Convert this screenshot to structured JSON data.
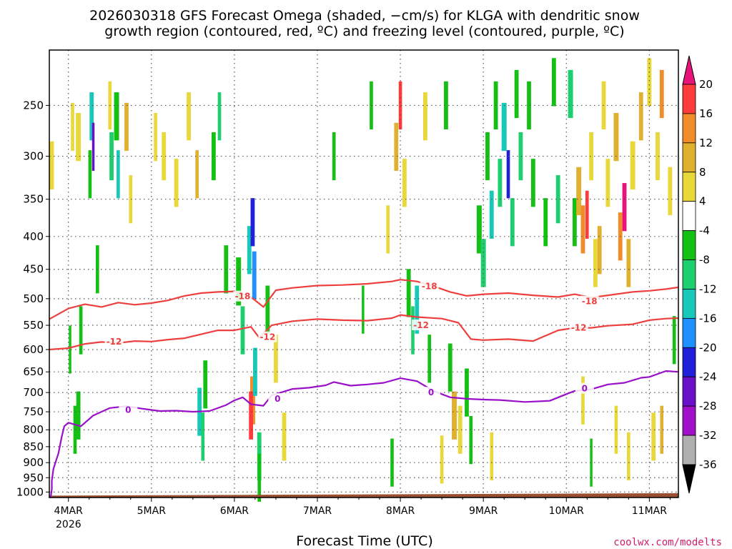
{
  "chart_data": {
    "type": "heatmap",
    "title_line1": "2026030318 GFS Forecast Omega (shaded, −cm/s) for KLGA with dendritic snow",
    "title_line2": "growth region (contoured, red, ºC) and freezing level (contoured, purple, ºC)",
    "xlabel": "Forecast Time (UTC)",
    "ylabel": "",
    "credit": "coolwx.com/modelts",
    "x_range": [
      -0.23,
      7.35
    ],
    "x_ticks": [
      {
        "x": 0,
        "label": "4MAR"
      },
      {
        "x": 1,
        "label": "5MAR"
      },
      {
        "x": 2,
        "label": "6MAR"
      },
      {
        "x": 3,
        "label": "7MAR"
      },
      {
        "x": 4,
        "label": "8MAR"
      },
      {
        "x": 5,
        "label": "9MAR"
      },
      {
        "x": 6,
        "label": "10MAR"
      },
      {
        "x": 7,
        "label": "11MAR"
      }
    ],
    "x_year_label": "2026",
    "y_axis_scale": "log pressure (hPa)",
    "y_range": [
      1020,
      205
    ],
    "y_ticks": [
      "250",
      "300",
      "350",
      "400",
      "450",
      "500",
      "550",
      "600",
      "650",
      "700",
      "750",
      "800",
      "850",
      "900",
      "950",
      "1000"
    ],
    "colorbar": {
      "boundaries": [
        -36,
        -32,
        -28,
        -24,
        -20,
        -16,
        -12,
        -8,
        -4,
        4,
        8,
        12,
        16,
        20
      ],
      "tick_labels": [
        "20",
        "16",
        "12",
        "8",
        "4",
        "-4",
        "-8",
        "-12",
        "-16",
        "-20",
        "-24",
        "-28",
        "-32",
        "-36"
      ],
      "colors_top_to_bottom": [
        "#e8137a",
        "#ff3b3b",
        "#f08c2a",
        "#e0b030",
        "#e8d83a",
        "#ffffff",
        "#15c015",
        "#1fcf6f",
        "#18c8b8",
        "#1e90ff",
        "#2020d8",
        "#6a10c8",
        "#a010c8",
        "#b0b0b0",
        "#000000"
      ]
    },
    "series": [
      {
        "name": "-18C isotherm (DGZ top)",
        "color": "#ee3f3f",
        "label": "-18",
        "label_positions": [
          [
            2.1,
            496
          ],
          [
            4.35,
            478
          ],
          [
            6.28,
            505
          ]
        ],
        "points": [
          [
            -0.23,
            538
          ],
          [
            0.0,
            518
          ],
          [
            0.2,
            510
          ],
          [
            0.4,
            515
          ],
          [
            0.6,
            507
          ],
          [
            0.8,
            511
          ],
          [
            1.0,
            508
          ],
          [
            1.2,
            503
          ],
          [
            1.4,
            495
          ],
          [
            1.6,
            490
          ],
          [
            1.8,
            488
          ],
          [
            2.0,
            487
          ],
          [
            2.2,
            497
          ],
          [
            2.35,
            515
          ],
          [
            2.5,
            485
          ],
          [
            2.7,
            481
          ],
          [
            3.0,
            477
          ],
          [
            3.3,
            476
          ],
          [
            3.6,
            474
          ],
          [
            3.9,
            470
          ],
          [
            4.0,
            467
          ],
          [
            4.2,
            470
          ],
          [
            4.4,
            478
          ],
          [
            4.6,
            488
          ],
          [
            4.8,
            495
          ],
          [
            5.0,
            492
          ],
          [
            5.3,
            490
          ],
          [
            5.6,
            494
          ],
          [
            5.9,
            497
          ],
          [
            6.1,
            492
          ],
          [
            6.3,
            498
          ],
          [
            6.5,
            494
          ],
          [
            6.8,
            488
          ],
          [
            7.0,
            486
          ],
          [
            7.2,
            483
          ],
          [
            7.35,
            480
          ]
        ]
      },
      {
        "name": "-12C isotherm (DGZ bottom)",
        "color": "#ee3f3f",
        "label": "-12",
        "label_positions": [
          [
            0.55,
            583
          ],
          [
            2.4,
            574
          ],
          [
            4.25,
            550
          ],
          [
            6.15,
            555
          ]
        ],
        "points": [
          [
            -0.23,
            600
          ],
          [
            0.0,
            597
          ],
          [
            0.2,
            588
          ],
          [
            0.4,
            584
          ],
          [
            0.6,
            586
          ],
          [
            0.8,
            582
          ],
          [
            1.0,
            583
          ],
          [
            1.2,
            579
          ],
          [
            1.4,
            576
          ],
          [
            1.6,
            568
          ],
          [
            1.8,
            560
          ],
          [
            2.0,
            560
          ],
          [
            2.2,
            553
          ],
          [
            2.3,
            575
          ],
          [
            2.45,
            550
          ],
          [
            2.7,
            542
          ],
          [
            3.0,
            538
          ],
          [
            3.3,
            540
          ],
          [
            3.6,
            541
          ],
          [
            3.9,
            536
          ],
          [
            4.0,
            530
          ],
          [
            4.2,
            534
          ],
          [
            4.5,
            537
          ],
          [
            4.7,
            545
          ],
          [
            4.85,
            578
          ],
          [
            5.0,
            580
          ],
          [
            5.3,
            578
          ],
          [
            5.6,
            582
          ],
          [
            5.9,
            560
          ],
          [
            6.1,
            555
          ],
          [
            6.3,
            555
          ],
          [
            6.5,
            551
          ],
          [
            6.8,
            548
          ],
          [
            7.0,
            540
          ],
          [
            7.2,
            537
          ],
          [
            7.35,
            536
          ]
        ]
      },
      {
        "name": "0C freezing level",
        "color": "#9a10c8",
        "label": "0",
        "label_positions": [
          [
            0.72,
            745
          ],
          [
            2.52,
            716
          ],
          [
            4.37,
            700
          ],
          [
            6.22,
            690
          ]
        ],
        "points": [
          [
            -0.23,
            1020
          ],
          [
            -0.21,
            1012
          ],
          [
            -0.2,
            990
          ],
          [
            -0.2,
            960
          ],
          [
            -0.18,
            920
          ],
          [
            -0.12,
            870
          ],
          [
            -0.08,
            820
          ],
          [
            -0.05,
            790
          ],
          [
            0.0,
            780
          ],
          [
            0.15,
            790
          ],
          [
            0.3,
            760
          ],
          [
            0.5,
            740
          ],
          [
            0.7,
            735
          ],
          [
            0.9,
            742
          ],
          [
            1.1,
            748
          ],
          [
            1.3,
            747
          ],
          [
            1.5,
            750
          ],
          [
            1.7,
            748
          ],
          [
            1.9,
            732
          ],
          [
            2.0,
            720
          ],
          [
            2.1,
            712
          ],
          [
            2.2,
            730
          ],
          [
            2.35,
            734
          ],
          [
            2.45,
            707
          ],
          [
            2.7,
            691
          ],
          [
            2.9,
            688
          ],
          [
            3.1,
            682
          ],
          [
            3.2,
            674
          ],
          [
            3.4,
            683
          ],
          [
            3.6,
            680
          ],
          [
            3.8,
            676
          ],
          [
            4.0,
            665
          ],
          [
            4.2,
            672
          ],
          [
            4.4,
            696
          ],
          [
            4.6,
            712
          ],
          [
            4.8,
            716
          ],
          [
            5.0,
            718
          ],
          [
            5.2,
            719
          ],
          [
            5.5,
            724
          ],
          [
            5.8,
            721
          ],
          [
            6.0,
            704
          ],
          [
            6.1,
            696
          ],
          [
            6.3,
            692
          ],
          [
            6.5,
            680
          ],
          [
            6.7,
            676
          ],
          [
            6.9,
            664
          ],
          [
            7.0,
            662
          ],
          [
            7.2,
            648
          ],
          [
            7.35,
            650
          ]
        ]
      }
    ],
    "omega_cells_note": "Shaded omega cells estimated by eye: [x_day, p_hPa_mid, width_day, value]",
    "omega_cells": [
      [
        -0.2,
        310,
        0.05,
        4
      ],
      [
        0.05,
        270,
        0.04,
        6
      ],
      [
        0.12,
        280,
        0.06,
        4
      ],
      [
        0.28,
        260,
        0.05,
        -16
      ],
      [
        0.26,
        320,
        0.04,
        -8
      ],
      [
        0.3,
        290,
        0.03,
        -28
      ],
      [
        0.35,
        450,
        0.04,
        -8
      ],
      [
        0.15,
        560,
        0.04,
        -8
      ],
      [
        0.08,
        800,
        0.04,
        -8
      ],
      [
        0.12,
        760,
        0.05,
        -8
      ],
      [
        0.02,
        600,
        0.03,
        -8
      ],
      [
        0.5,
        250,
        0.04,
        6
      ],
      [
        0.52,
        300,
        0.05,
        -12
      ],
      [
        0.58,
        260,
        0.06,
        -8
      ],
      [
        0.6,
        320,
        0.04,
        -16
      ],
      [
        0.7,
        270,
        0.05,
        8
      ],
      [
        0.75,
        350,
        0.04,
        6
      ],
      [
        1.05,
        280,
        0.04,
        4
      ],
      [
        1.15,
        300,
        0.05,
        6
      ],
      [
        1.3,
        330,
        0.05,
        4
      ],
      [
        1.45,
        260,
        0.05,
        6
      ],
      [
        1.55,
        320,
        0.04,
        8
      ],
      [
        1.58,
        750,
        0.05,
        -16
      ],
      [
        1.65,
        680,
        0.05,
        -8
      ],
      [
        1.62,
        820,
        0.04,
        -12
      ],
      [
        1.75,
        300,
        0.05,
        -8
      ],
      [
        1.82,
        260,
        0.04,
        -12
      ],
      [
        1.9,
        450,
        0.05,
        -8
      ],
      [
        2.05,
        470,
        0.06,
        -8
      ],
      [
        2.1,
        560,
        0.05,
        -12
      ],
      [
        2.18,
        420,
        0.05,
        -16
      ],
      [
        2.22,
        380,
        0.05,
        -24
      ],
      [
        2.24,
        460,
        0.05,
        -20
      ],
      [
        2.22,
        720,
        0.06,
        12
      ],
      [
        2.2,
        760,
        0.05,
        16
      ],
      [
        2.25,
        650,
        0.05,
        -16
      ],
      [
        2.3,
        880,
        0.05,
        -12
      ],
      [
        2.3,
        950,
        0.04,
        -8
      ],
      [
        2.4,
        520,
        0.05,
        -8
      ],
      [
        2.5,
        620,
        0.05,
        4
      ],
      [
        2.6,
        820,
        0.05,
        6
      ],
      [
        3.2,
        300,
        0.04,
        -8
      ],
      [
        3.55,
        520,
        0.03,
        -8
      ],
      [
        3.65,
        250,
        0.04,
        -8
      ],
      [
        3.85,
        390,
        0.04,
        6
      ],
      [
        3.95,
        290,
        0.05,
        8
      ],
      [
        4.0,
        250,
        0.04,
        16
      ],
      [
        4.05,
        330,
        0.05,
        6
      ],
      [
        4.1,
        490,
        0.05,
        -8
      ],
      [
        4.15,
        560,
        0.04,
        -12
      ],
      [
        4.2,
        520,
        0.05,
        -16
      ],
      [
        4.3,
        260,
        0.05,
        6
      ],
      [
        4.35,
        620,
        0.04,
        -8
      ],
      [
        4.55,
        250,
        0.05,
        -8
      ],
      [
        4.6,
        640,
        0.05,
        -8
      ],
      [
        4.65,
        760,
        0.06,
        8
      ],
      [
        4.72,
        800,
        0.05,
        4
      ],
      [
        4.8,
        700,
        0.05,
        -8
      ],
      [
        4.85,
        830,
        0.04,
        -8
      ],
      [
        4.95,
        390,
        0.06,
        -8
      ],
      [
        5.0,
        440,
        0.06,
        -12
      ],
      [
        5.05,
        300,
        0.05,
        -8
      ],
      [
        5.1,
        370,
        0.05,
        -16
      ],
      [
        5.15,
        250,
        0.05,
        -8
      ],
      [
        5.2,
        330,
        0.05,
        -12
      ],
      [
        5.25,
        270,
        0.06,
        -16
      ],
      [
        5.3,
        320,
        0.04,
        -24
      ],
      [
        5.35,
        380,
        0.05,
        -12
      ],
      [
        5.4,
        240,
        0.05,
        -8
      ],
      [
        5.45,
        300,
        0.05,
        -12
      ],
      [
        5.55,
        250,
        0.05,
        -8
      ],
      [
        5.6,
        330,
        0.05,
        -8
      ],
      [
        5.75,
        380,
        0.05,
        -8
      ],
      [
        5.85,
        230,
        0.05,
        -8
      ],
      [
        5.9,
        350,
        0.05,
        -12
      ],
      [
        6.05,
        240,
        0.06,
        -12
      ],
      [
        6.1,
        380,
        0.05,
        -8
      ],
      [
        6.15,
        340,
        0.06,
        8
      ],
      [
        6.2,
        390,
        0.05,
        12
      ],
      [
        6.25,
        370,
        0.04,
        16
      ],
      [
        6.3,
        300,
        0.05,
        6
      ],
      [
        6.35,
        440,
        0.05,
        6
      ],
      [
        6.4,
        420,
        0.05,
        8
      ],
      [
        6.45,
        250,
        0.05,
        6
      ],
      [
        6.5,
        330,
        0.05,
        4
      ],
      [
        6.6,
        280,
        0.06,
        8
      ],
      [
        6.65,
        400,
        0.05,
        12
      ],
      [
        6.7,
        360,
        0.05,
        20
      ],
      [
        6.75,
        440,
        0.05,
        8
      ],
      [
        6.8,
        310,
        0.06,
        6
      ],
      [
        6.9,
        260,
        0.05,
        8
      ],
      [
        7.0,
        230,
        0.05,
        6
      ],
      [
        7.1,
        300,
        0.05,
        4
      ],
      [
        7.15,
        240,
        0.05,
        12
      ],
      [
        7.25,
        340,
        0.05,
        4
      ],
      [
        7.3,
        580,
        0.04,
        -8
      ],
      [
        6.2,
        720,
        0.04,
        6
      ],
      [
        6.6,
        800,
        0.04,
        6
      ],
      [
        6.75,
        880,
        0.04,
        4
      ],
      [
        7.05,
        820,
        0.05,
        6
      ],
      [
        7.15,
        800,
        0.04,
        8
      ],
      [
        6.3,
        900,
        0.03,
        -8
      ],
      [
        5.1,
        880,
        0.04,
        6
      ],
      [
        4.5,
        890,
        0.04,
        4
      ],
      [
        3.9,
        900,
        0.04,
        -8
      ]
    ],
    "terrain": {
      "name": "surface",
      "color": "#9a5030",
      "pressure_top_left": 1013,
      "pressure_top_right": 1004
    }
  }
}
